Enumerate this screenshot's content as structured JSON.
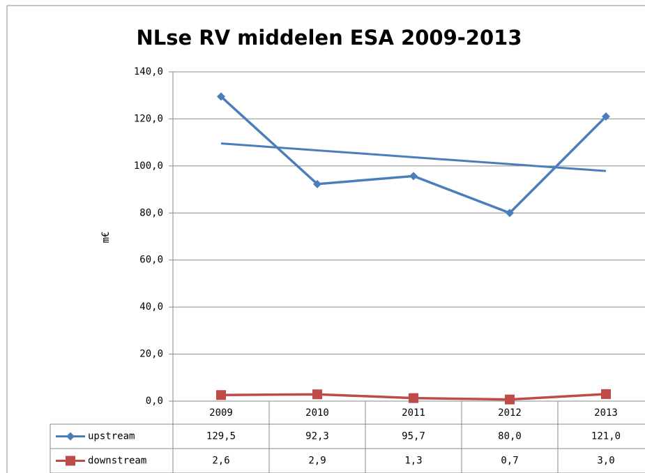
{
  "chart_data": {
    "type": "line",
    "title": "NLse RV middelen ESA 2009-2013",
    "y_label": "m€",
    "categories": [
      "2009",
      "2010",
      "2011",
      "2012",
      "2013"
    ],
    "series": [
      {
        "name": "upstream",
        "color": "#4a7ebb",
        "marker": "diamond",
        "trendline": "linear",
        "values": [
          129.5,
          92.3,
          95.7,
          80.0,
          121.0
        ],
        "value_labels": [
          "129,5",
          "92,3",
          "95,7",
          "80,0",
          "121,0"
        ]
      },
      {
        "name": "downstream",
        "color": "#be4b48",
        "marker": "square",
        "values": [
          2.6,
          2.9,
          1.3,
          0.7,
          3.0
        ],
        "value_labels": [
          "2,6",
          "2,9",
          "1,3",
          "0,7",
          "3,0"
        ]
      }
    ],
    "ylim": [
      0,
      140
    ],
    "yticks": [
      {
        "value": 0,
        "label": "0,0"
      },
      {
        "value": 20,
        "label": "20,0"
      },
      {
        "value": 40,
        "label": "40,0"
      },
      {
        "value": 60,
        "label": "60,0"
      },
      {
        "value": 80,
        "label": "80,0"
      },
      {
        "value": 100,
        "label": "100,0"
      },
      {
        "value": 120,
        "label": "120,0"
      },
      {
        "value": 140,
        "label": "140,0"
      }
    ],
    "grid": true,
    "data_table": true
  }
}
